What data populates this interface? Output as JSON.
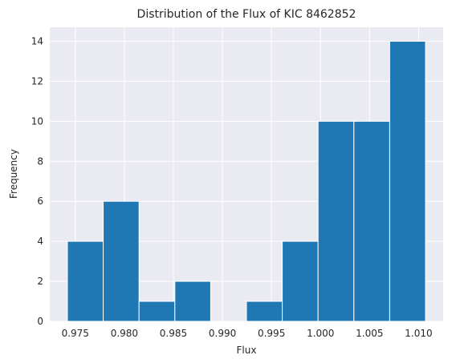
{
  "chart_data": {
    "type": "bar",
    "title": "Distribution of the Flux of KIC 8462852",
    "xlabel": "Flux",
    "ylabel": "Frequency",
    "xlim": [
      0.9724,
      1.0125
    ],
    "ylim": [
      0,
      14.7
    ],
    "grid": true,
    "background_color": "#eaeaf2",
    "bar_color": "#1f77b4",
    "bins": [
      {
        "x0": 0.9742,
        "x1": 0.97785,
        "count": 4
      },
      {
        "x0": 0.97785,
        "x1": 0.9815,
        "count": 6
      },
      {
        "x0": 0.9815,
        "x1": 0.98515,
        "count": 1
      },
      {
        "x0": 0.98515,
        "x1": 0.9888,
        "count": 2
      },
      {
        "x0": 0.9888,
        "x1": 0.99245,
        "count": 0
      },
      {
        "x0": 0.99245,
        "x1": 0.9961,
        "count": 1
      },
      {
        "x0": 0.9961,
        "x1": 0.99975,
        "count": 4
      },
      {
        "x0": 0.99975,
        "x1": 1.0034,
        "count": 10
      },
      {
        "x0": 1.0034,
        "x1": 1.00705,
        "count": 10
      },
      {
        "x0": 1.00705,
        "x1": 1.0107,
        "count": 14
      }
    ],
    "xticks": [
      0.975,
      0.98,
      0.985,
      0.99,
      0.995,
      1.0,
      1.005,
      1.01
    ],
    "xtick_labels": [
      "0.975",
      "0.980",
      "0.985",
      "0.990",
      "0.995",
      "1.000",
      "1.005",
      "1.010"
    ],
    "yticks": [
      0,
      2,
      4,
      6,
      8,
      10,
      12,
      14
    ],
    "ytick_labels": [
      "0",
      "2",
      "4",
      "6",
      "8",
      "10",
      "12",
      "14"
    ]
  }
}
